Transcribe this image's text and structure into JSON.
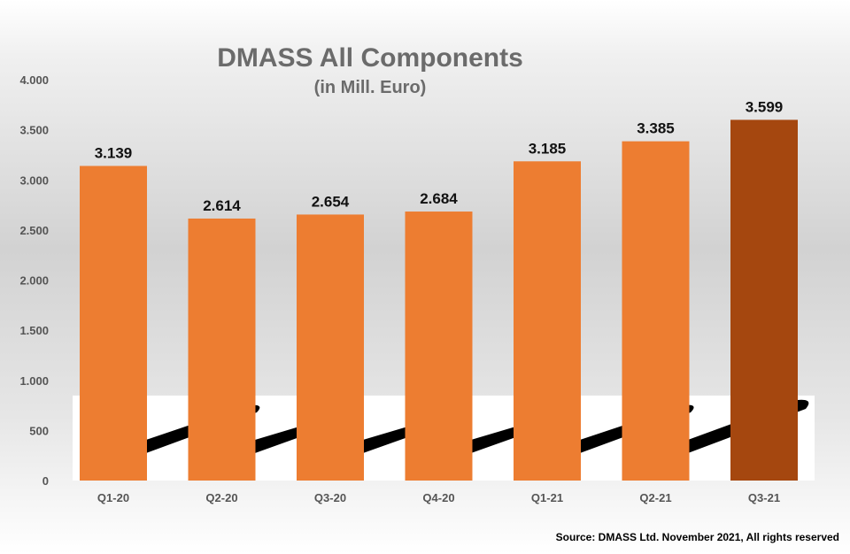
{
  "chart_data": {
    "type": "bar",
    "title": "DMASS All Components",
    "subtitle": "(in Mill. Euro)",
    "categories": [
      "Q1-20",
      "Q2-20",
      "Q3-20",
      "Q4-20",
      "Q1-21",
      "Q2-21",
      "Q3-21"
    ],
    "values": [
      3139,
      2614,
      2654,
      2684,
      3185,
      3385,
      3599
    ],
    "value_labels": [
      "3.139",
      "2.614",
      "2.654",
      "2.684",
      "3.185",
      "3.385",
      "3.599"
    ],
    "y_ticks": [
      0,
      500,
      1000,
      1500,
      2000,
      2500,
      3000,
      3500,
      4000
    ],
    "y_tick_labels": [
      "0",
      "500",
      "1.000",
      "1.500",
      "2.000",
      "2.500",
      "3.000",
      "3.500",
      "4.000"
    ],
    "ylim": [
      0,
      4000
    ],
    "grid": false,
    "legend": "none",
    "xlabel": "",
    "ylabel": "",
    "colors": {
      "bar": "#ED7D31",
      "highlight_bar": "#A5470F",
      "highlight_index": 6
    },
    "source": "Source: DMASS Ltd. November 2021, All rights reserved"
  }
}
